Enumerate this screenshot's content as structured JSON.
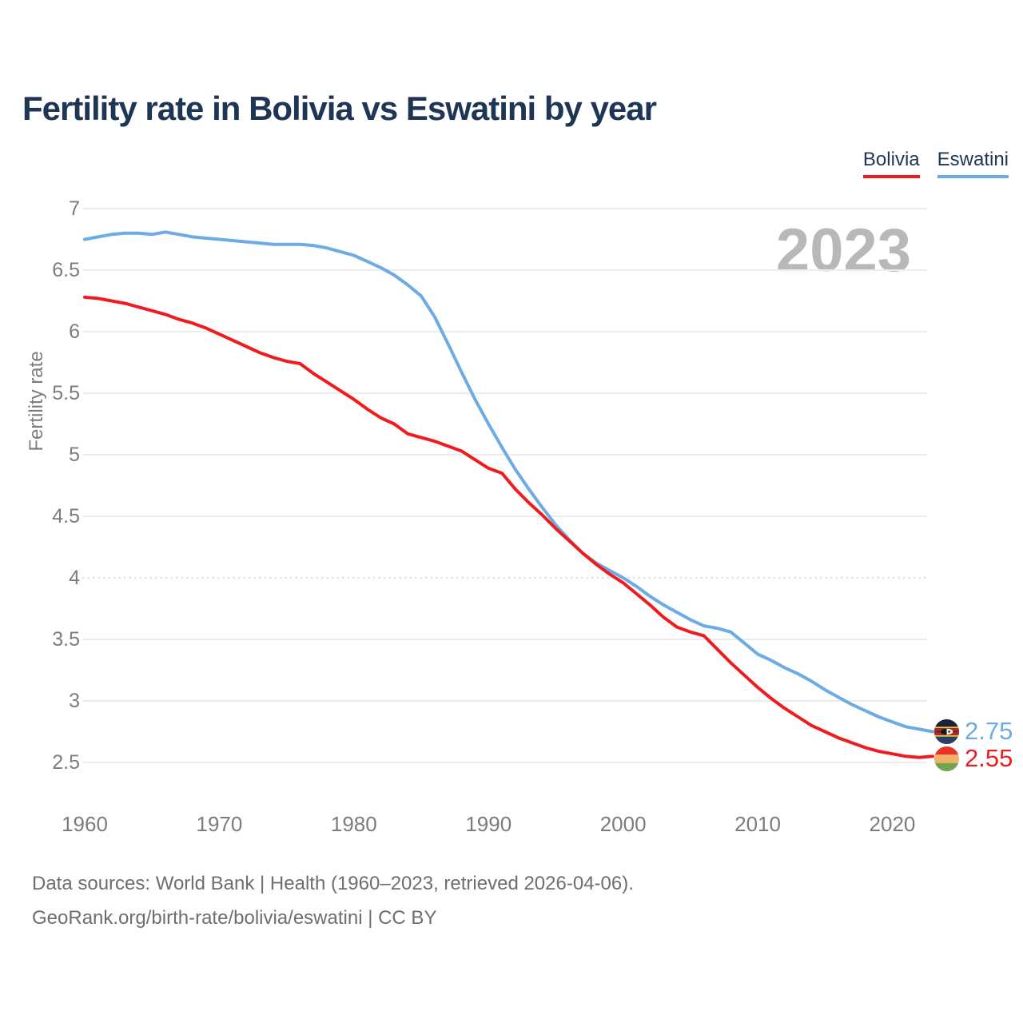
{
  "title": "Fertility rate in Bolivia vs Eswatini by year",
  "watermark": "2023",
  "legend": {
    "items": [
      {
        "label": "Bolivia",
        "color": "#ee1c1f"
      },
      {
        "label": "Eswatini",
        "color": "#6dabe4"
      }
    ]
  },
  "y_axis_label": "Fertility rate",
  "end_labels": {
    "eswatini": {
      "value": "2.75",
      "color": "#6dabe4",
      "flag": "eswatini-flag"
    },
    "bolivia": {
      "value": "2.55",
      "color": "#ee1c1f",
      "flag": "bolivia-flag"
    }
  },
  "footer": {
    "line1": "Data sources: World Bank | Health (1960–2023, retrieved 2026-04-06).",
    "line2": "GeoRank.org/birth-rate/bolivia/eswatini | CC BY"
  },
  "colors": {
    "title": "#1e3553",
    "axis_text": "#7c7c7c",
    "gridline": "#ececec",
    "dotted_gridline": "#e3e3e3",
    "watermark": "#b8b8b8",
    "footer_text": "#6e6e6e",
    "background": "#ffffff"
  },
  "chart_data": {
    "type": "line",
    "title": "Fertility rate in Bolivia vs Eswatini by year",
    "xlabel": "",
    "ylabel": "Fertility rate",
    "xlim": [
      1960,
      2023
    ],
    "ylim": [
      2.5,
      7
    ],
    "x_ticks": [
      1960,
      1970,
      1980,
      1990,
      2000,
      2010,
      2020
    ],
    "y_ticks": [
      7,
      6.5,
      6,
      5.5,
      5,
      4.5,
      4,
      3.5,
      3,
      2.5
    ],
    "grid": "horizontal",
    "dotted_gridline_at": 4,
    "legend_position": "top-right",
    "x_start": 1960,
    "x_step": 1,
    "series": [
      {
        "name": "Bolivia",
        "color": "#ee1c1f",
        "end_label": "2.55",
        "values": [
          6.28,
          6.27,
          6.25,
          6.23,
          6.2,
          6.17,
          6.14,
          6.1,
          6.07,
          6.03,
          5.98,
          5.93,
          5.88,
          5.83,
          5.79,
          5.76,
          5.74,
          5.66,
          5.59,
          5.52,
          5.45,
          5.37,
          5.3,
          5.25,
          5.17,
          5.14,
          5.11,
          5.07,
          5.03,
          4.96,
          4.89,
          4.85,
          4.72,
          4.61,
          4.51,
          4.4,
          4.3,
          4.2,
          4.11,
          4.03,
          3.96,
          3.87,
          3.78,
          3.68,
          3.6,
          3.56,
          3.53,
          3.42,
          3.31,
          3.21,
          3.11,
          3.02,
          2.94,
          2.87,
          2.8,
          2.75,
          2.7,
          2.66,
          2.62,
          2.59,
          2.57,
          2.55,
          2.54,
          2.55
        ]
      },
      {
        "name": "Eswatini",
        "color": "#6dabe4",
        "end_label": "2.75",
        "values": [
          6.75,
          6.77,
          6.79,
          6.8,
          6.8,
          6.79,
          6.81,
          6.79,
          6.77,
          6.76,
          6.75,
          6.74,
          6.73,
          6.72,
          6.71,
          6.71,
          6.71,
          6.7,
          6.68,
          6.65,
          6.62,
          6.57,
          6.52,
          6.46,
          6.38,
          6.29,
          6.12,
          5.9,
          5.67,
          5.45,
          5.25,
          5.06,
          4.88,
          4.72,
          4.57,
          4.43,
          4.31,
          4.2,
          4.12,
          4.06,
          4.0,
          3.93,
          3.85,
          3.78,
          3.72,
          3.66,
          3.61,
          3.59,
          3.56,
          3.47,
          3.38,
          3.33,
          3.27,
          3.22,
          3.16,
          3.09,
          3.03,
          2.97,
          2.92,
          2.87,
          2.83,
          2.79,
          2.77,
          2.75
        ]
      }
    ]
  }
}
